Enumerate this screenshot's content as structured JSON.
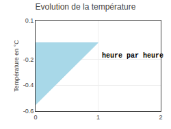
{
  "chart_data": {
    "type": "area",
    "title": "Evolution de la température",
    "ylabel": "Température en °C",
    "annotation": "heure par heure",
    "x": [
      0,
      0,
      1
    ],
    "values": [
      -0.55,
      -0.07,
      -0.07
    ],
    "color": "#a8d8e8",
    "xlim": [
      0,
      2
    ],
    "ylim": [
      -0.6,
      0.1
    ],
    "xticks": [
      0,
      1,
      2
    ],
    "yticks": [
      0.1,
      -0.2,
      -0.4,
      -0.6
    ],
    "grid": true
  }
}
